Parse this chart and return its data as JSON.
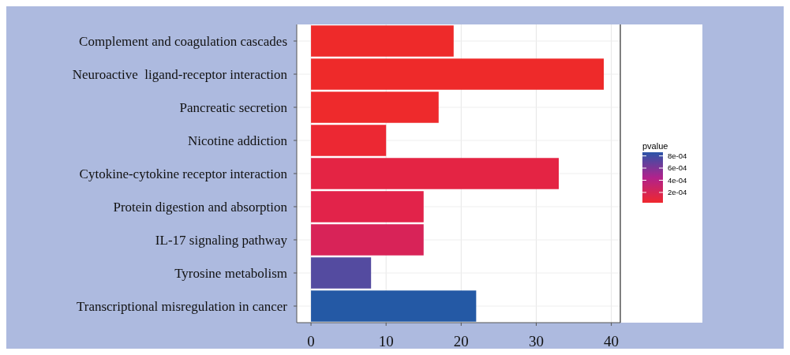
{
  "chart_data": {
    "type": "bar",
    "orientation": "horizontal",
    "categories": [
      "Complement and coagulation cascades",
      "Neuroactive  ligand-receptor interaction",
      "Pancreatic secretion",
      "Nicotine addiction",
      "Cytokine-cytokine receptor interaction",
      "Protein digestion and absorption",
      "IL-17 signaling pathway",
      "Tyrosine metabolism",
      "Transcriptional misregulation in cancer"
    ],
    "values": [
      19,
      39,
      17,
      10,
      33,
      15,
      15,
      8,
      22
    ],
    "colors": [
      "#ee2a2a",
      "#ee2a2a",
      "#ee2a2c",
      "#ec2833",
      "#e42444",
      "#e2234a",
      "#d82358",
      "#544ba0",
      "#2459a5"
    ],
    "xlim": [
      -1.9,
      41.2
    ],
    "xticks": [
      0,
      10,
      20,
      30,
      40
    ],
    "grid": true,
    "clabel": "pvalue",
    "clim": [
      3e-05,
      0.00086
    ],
    "cticks": [
      {
        "value": 0.0002,
        "label": "2e-04"
      },
      {
        "value": 0.0004,
        "label": "4e-04"
      },
      {
        "value": 0.0006,
        "label": "6e-04"
      },
      {
        "value": 0.0008,
        "label": "8e-04"
      }
    ]
  }
}
